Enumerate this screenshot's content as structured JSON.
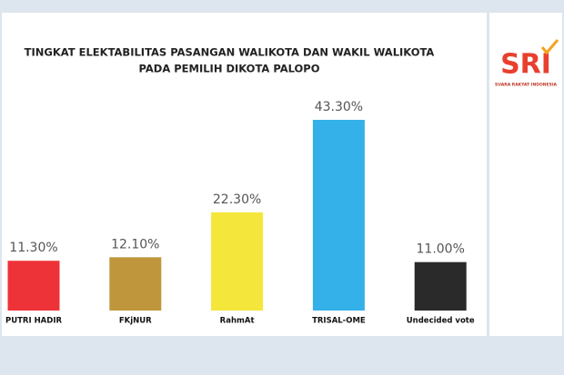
{
  "chart_data": {
    "type": "bar",
    "title": [
      "TINGKAT ELEKTABILITAS PASANGAN WALIKOTA DAN WAKIL WALIKOTA",
      "PADA PEMILIH DIKOTA PALOPO"
    ],
    "categories": [
      "PUTRI HADIR",
      "FKjNUR",
      "RahmAt",
      "TRISAL-OME",
      "Undecided vote"
    ],
    "values": [
      11.3,
      12.1,
      22.3,
      43.3,
      11.0
    ],
    "value_labels": [
      "11.30%",
      "12.10%",
      "22.30%",
      "43.30%",
      "11.00%"
    ],
    "colors": [
      "#ee3338",
      "#c0963c",
      "#f4e63a",
      "#33b1e8",
      "#2a2a2a"
    ],
    "ylim": [
      0,
      50
    ]
  },
  "logo": {
    "text": "SRI",
    "caption": "SUARA RAKYAT INDONESIA"
  }
}
